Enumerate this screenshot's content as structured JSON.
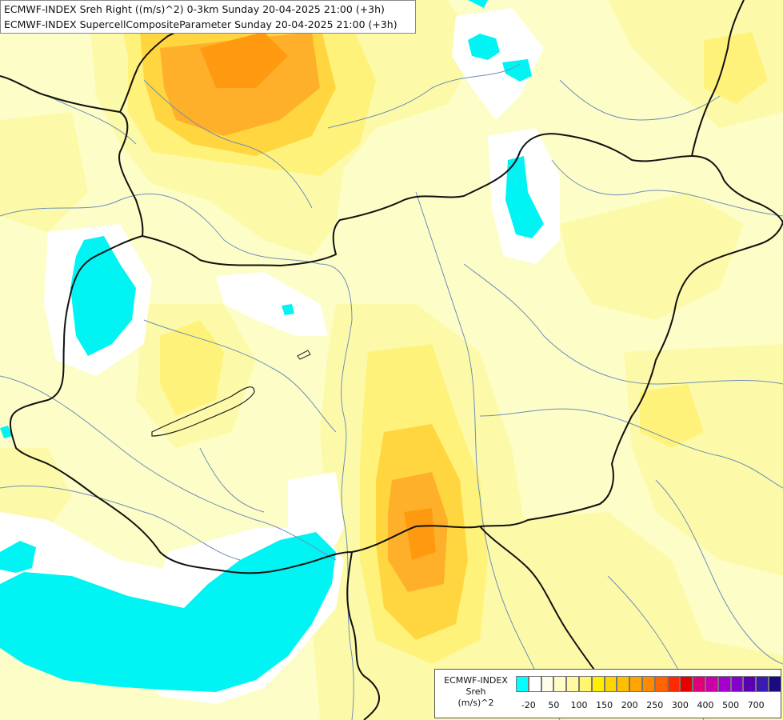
{
  "header": {
    "line1": "ECMWF-INDEX Sreh Right ((m/s)^2) 0-3km Sunday 20-04-2025 21:00 (+3h)",
    "line2": "ECMWF-INDEX SupercellCompositeParameter Sunday 20-04-2025 21:00 (+3h)"
  },
  "legend": {
    "title": [
      "ECMWF-INDEX",
      "Sreh",
      "(m/s)^2"
    ],
    "colors": [
      "#00ffff",
      "#ffffff",
      "#fffde8",
      "#fffcc8",
      "#fff8a0",
      "#fff570",
      "#ffee00",
      "#ffd500",
      "#ffbe00",
      "#ffa500",
      "#ff8a00",
      "#ff6400",
      "#ff2a00",
      "#e60000",
      "#e0007a",
      "#cc00aa",
      "#a800cc",
      "#8400cc",
      "#5a00b0",
      "#3a1ab0",
      "#1c0a80"
    ],
    "ticks": [
      {
        "label": "-20",
        "index": 1
      },
      {
        "label": "50",
        "index": 3
      },
      {
        "label": "100",
        "index": 5
      },
      {
        "label": "150",
        "index": 7
      },
      {
        "label": "200",
        "index": 9
      },
      {
        "label": "250",
        "index": 11
      },
      {
        "label": "300",
        "index": 13
      },
      {
        "label": "400",
        "index": 15
      },
      {
        "label": "500",
        "index": 17
      },
      {
        "label": "700",
        "index": 19
      }
    ]
  }
}
